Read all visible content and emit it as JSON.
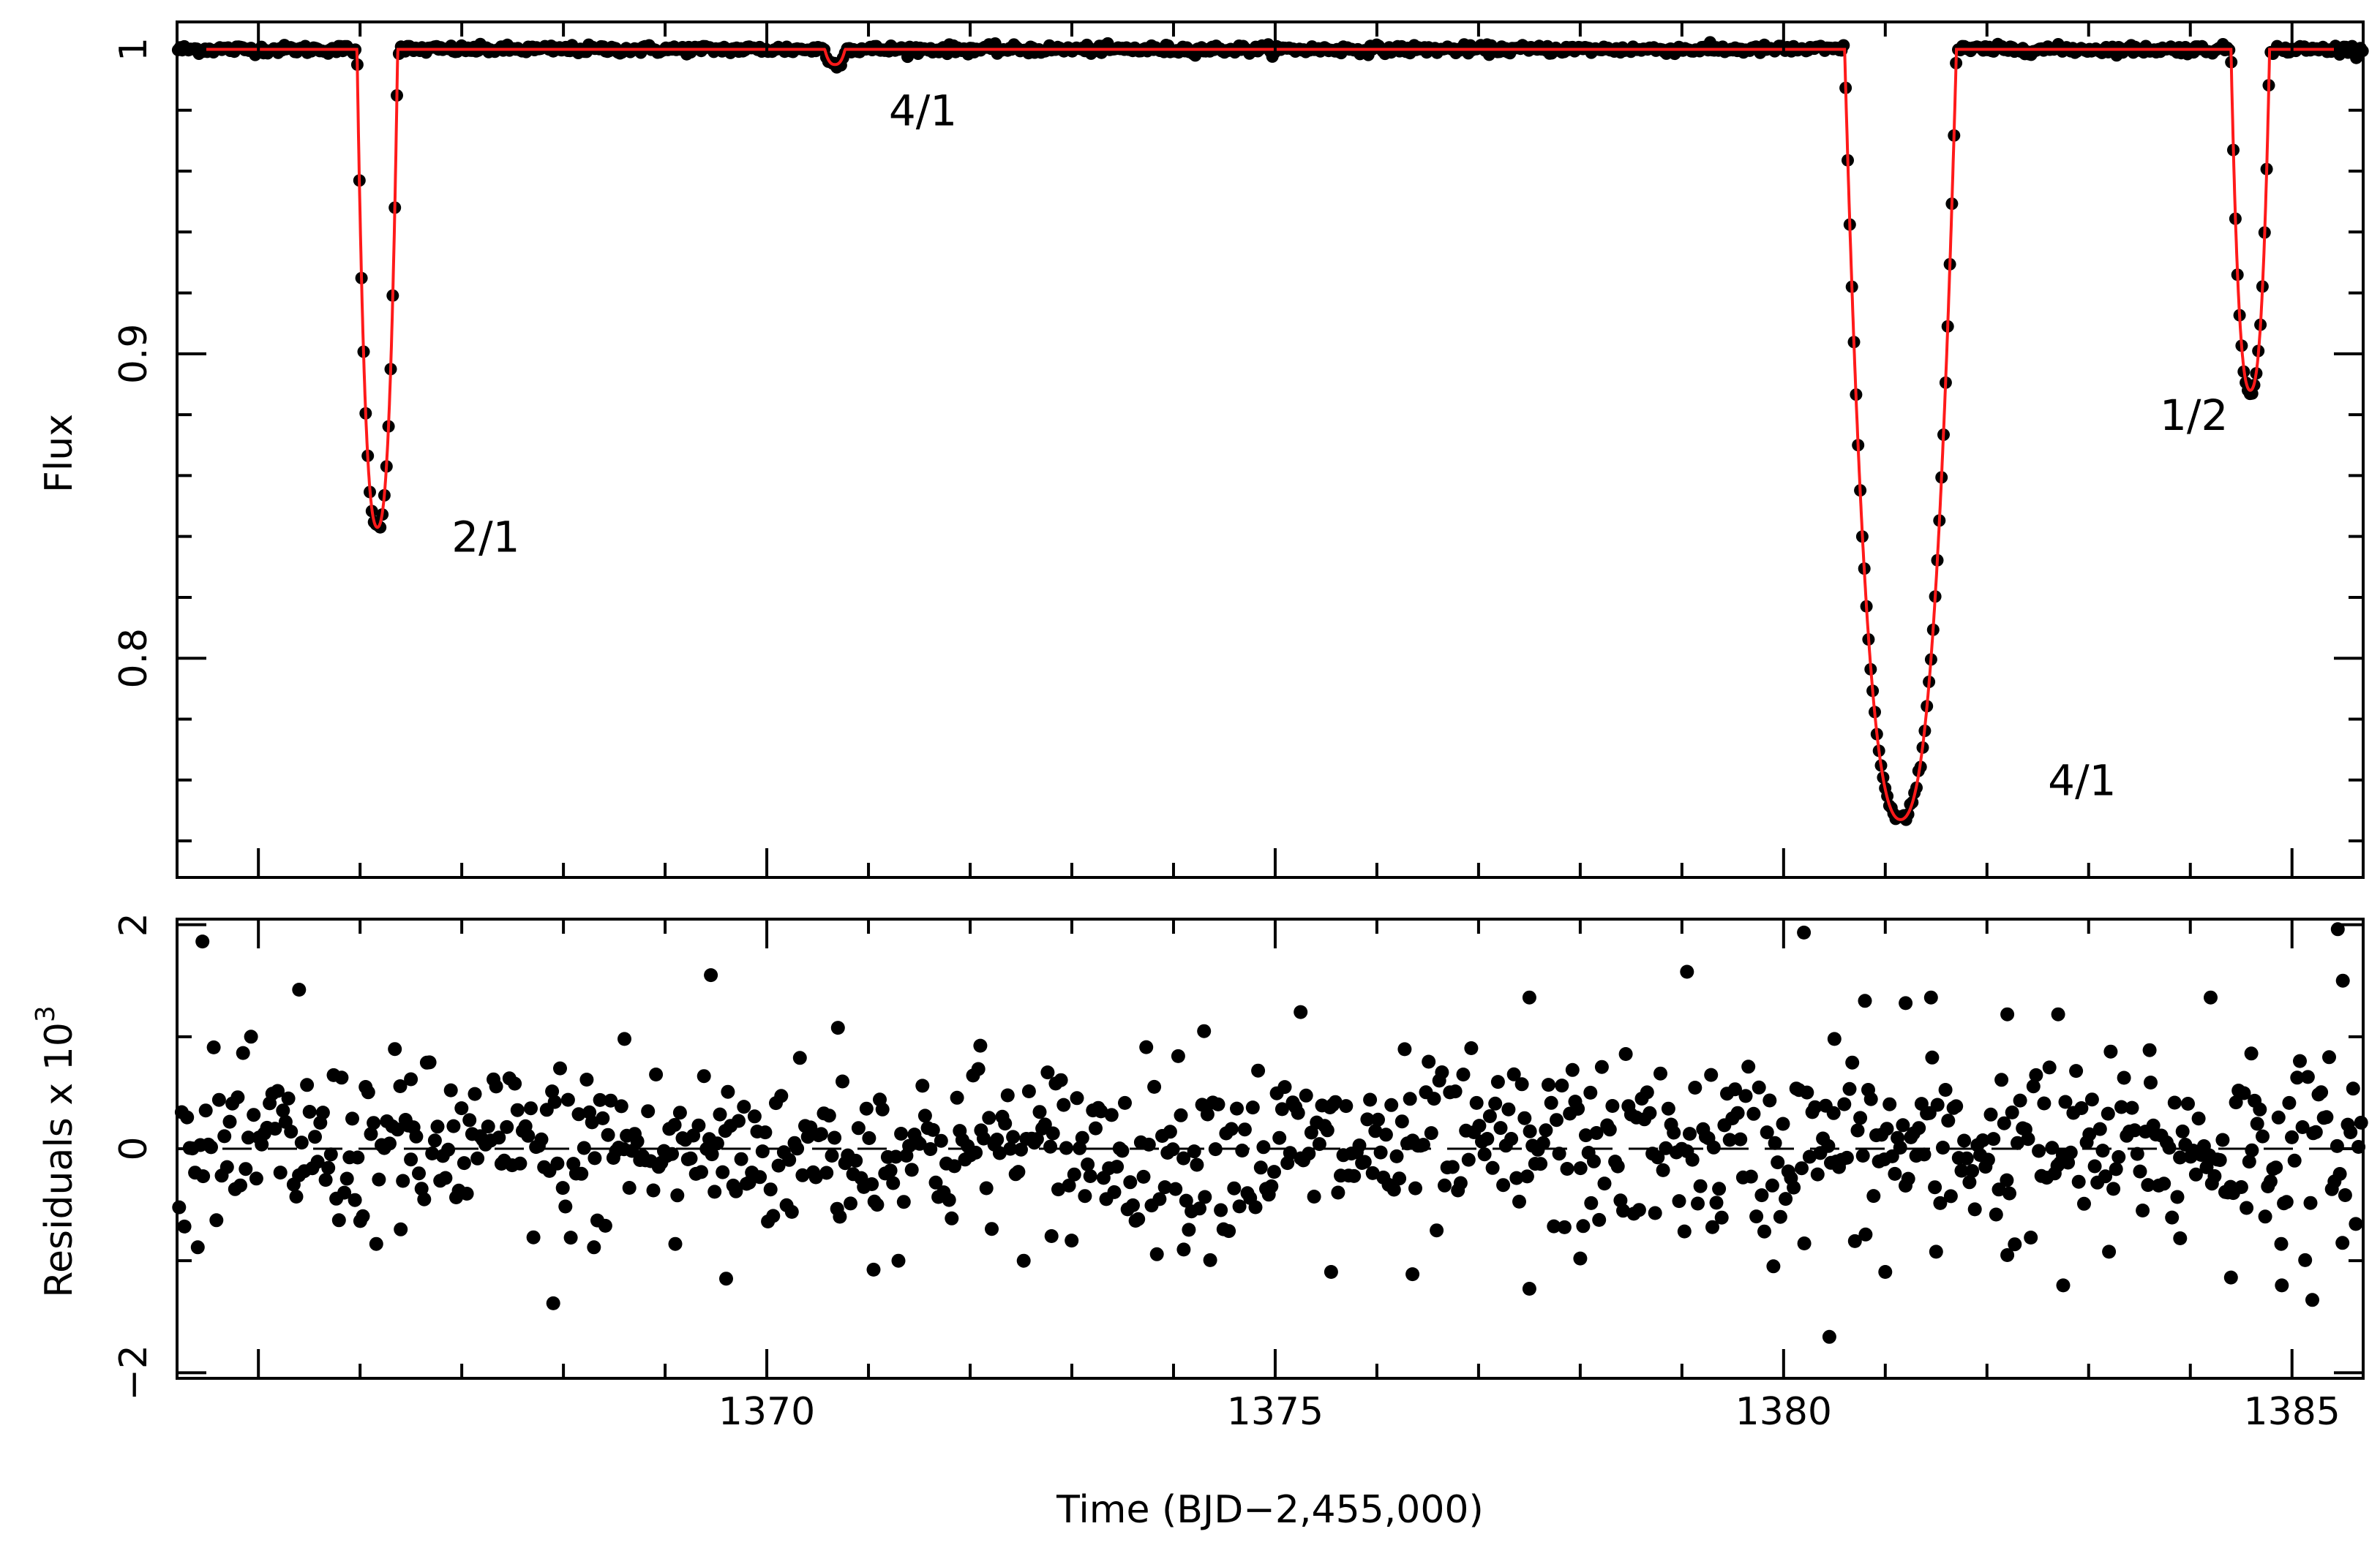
{
  "chart_data": [
    {
      "panel": "top",
      "type": "line",
      "title": "",
      "xlabel": "",
      "ylabel": "Flux",
      "xlim": [
        1364.2,
        1385.7
      ],
      "ylim": [
        0.728,
        1.009
      ],
      "yticks": [
        0.8,
        0.9,
        1
      ],
      "yticklabels": [
        "0.8",
        "0.9",
        "1"
      ],
      "grid": false,
      "series": [
        {
          "name": "data",
          "style": "points",
          "color": "#000000"
        },
        {
          "name": "model",
          "style": "line",
          "color": "#ff1a1a"
        }
      ],
      "eclipses": [
        {
          "label": "2/1",
          "center": 1366.17,
          "half_width": 0.2,
          "min_flux": 0.843
        },
        {
          "label": "4/1",
          "center": 1370.67,
          "half_width": 0.1,
          "min_flux": 0.995
        },
        {
          "label": "4/1",
          "center": 1381.15,
          "half_width": 0.55,
          "min_flux": 0.747
        },
        {
          "label": "1/2",
          "center": 1384.59,
          "half_width": 0.19,
          "min_flux": 0.888
        }
      ],
      "annotations": [
        {
          "text": "2/1",
          "x": 1366.9,
          "y": 0.835
        },
        {
          "text": "4/1",
          "x": 1371.2,
          "y": 0.975
        },
        {
          "text": "4/1",
          "x": 1382.6,
          "y": 0.755
        },
        {
          "text": "1/2",
          "x": 1383.7,
          "y": 0.875
        }
      ]
    },
    {
      "panel": "bottom",
      "type": "scatter",
      "title": "",
      "xlabel": "Time  (BJD−2,455,000)",
      "ylabel": "Residuals  x  10",
      "ylabel_superscript": "3",
      "xlim": [
        1364.2,
        1385.7
      ],
      "ylim": [
        -2.05,
        2.05
      ],
      "xticks": [
        1370,
        1375,
        1380,
        1385
      ],
      "xticklabels": [
        "1370",
        "1375",
        "1380",
        "1385"
      ],
      "yticks": [
        -2,
        0,
        2
      ],
      "yticklabels": [
        "−2",
        "0",
        "2"
      ],
      "zero_line": true,
      "grid": false,
      "points": [
        [
          1364.45,
          1.85
        ],
        [
          1365.4,
          1.42
        ],
        [
          1369.45,
          1.55
        ],
        [
          1374.3,
          1.05
        ],
        [
          1375.25,
          1.22
        ],
        [
          1377.5,
          1.35
        ],
        [
          1379.05,
          1.58
        ],
        [
          1380.2,
          1.93
        ],
        [
          1380.5,
          0.98
        ],
        [
          1380.8,
          1.32
        ],
        [
          1381.2,
          1.3
        ],
        [
          1381.45,
          1.35
        ],
        [
          1382.2,
          1.2
        ],
        [
          1382.7,
          1.2
        ],
        [
          1384.2,
          1.35
        ],
        [
          1385.45,
          1.96
        ],
        [
          1385.5,
          1.5
        ],
        [
          1366.5,
          0.62
        ],
        [
          1368.6,
          0.98
        ],
        [
          1370.7,
          1.08
        ],
        [
          1372.1,
          0.92
        ],
        [
          1378.1,
          0.5
        ],
        [
          1383.6,
          0.88
        ],
        [
          1384.6,
          0.85
        ],
        [
          1367.9,
          -1.38
        ],
        [
          1369.6,
          -1.16
        ],
        [
          1371.05,
          -1.08
        ],
        [
          1375.55,
          -1.1
        ],
        [
          1376.35,
          -1.12
        ],
        [
          1377.5,
          -1.25
        ],
        [
          1378.0,
          -0.98
        ],
        [
          1379.9,
          -1.05
        ],
        [
          1380.45,
          -1.68
        ],
        [
          1381.0,
          -1.1
        ],
        [
          1382.2,
          -0.95
        ],
        [
          1382.75,
          -1.22
        ],
        [
          1383.2,
          -0.92
        ],
        [
          1384.4,
          -1.15
        ],
        [
          1384.9,
          -1.22
        ],
        [
          1385.2,
          -1.35
        ],
        [
          1366.4,
          -0.72
        ],
        [
          1368.3,
          -0.88
        ],
        [
          1369.1,
          -0.85
        ],
        [
          1372.8,
          -0.78
        ],
        [
          1374.1,
          -0.9
        ],
        [
          1379.3,
          -0.7
        ],
        [
          1381.5,
          -0.92
        ],
        [
          1383.9,
          -0.8
        ]
      ],
      "scatter_noise_sigma": 0.38,
      "scatter_point_count": 820
    }
  ]
}
